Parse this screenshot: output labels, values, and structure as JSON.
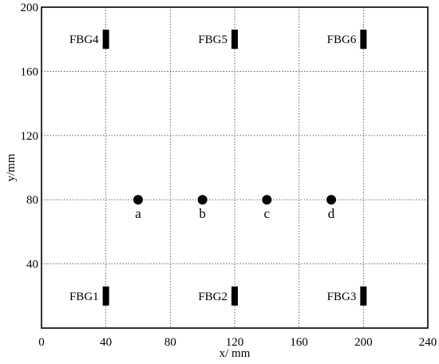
{
  "chart_data": {
    "type": "scatter",
    "title": "",
    "xlabel": "x/ mm",
    "ylabel": "y/mm",
    "xlim": [
      0,
      240
    ],
    "ylim": [
      0,
      200
    ],
    "xticks": [
      0,
      40,
      80,
      120,
      160,
      200,
      240
    ],
    "yticks": [
      40,
      80,
      120,
      160,
      200
    ],
    "grid": true,
    "grid_style": "dotted",
    "series": [
      {
        "marker": "circle",
        "points": [
          {
            "label": "a",
            "x": 60,
            "y": 80
          },
          {
            "label": "b",
            "x": 100,
            "y": 80
          },
          {
            "label": "c",
            "x": 140,
            "y": 80
          },
          {
            "label": "d",
            "x": 180,
            "y": 80
          }
        ]
      },
      {
        "marker": "rectangle",
        "points": [
          {
            "label": "FBG1",
            "x": 40,
            "y": 20
          },
          {
            "label": "FBG2",
            "x": 120,
            "y": 20
          },
          {
            "label": "FBG3",
            "x": 200,
            "y": 20
          },
          {
            "label": "FBG4",
            "x": 40,
            "y": 180
          },
          {
            "label": "FBG5",
            "x": 120,
            "y": 180
          },
          {
            "label": "FBG6",
            "x": 200,
            "y": 180
          }
        ]
      }
    ],
    "colors": {
      "marker": "#000000",
      "grid": "#555555",
      "axes": "#000000"
    }
  }
}
